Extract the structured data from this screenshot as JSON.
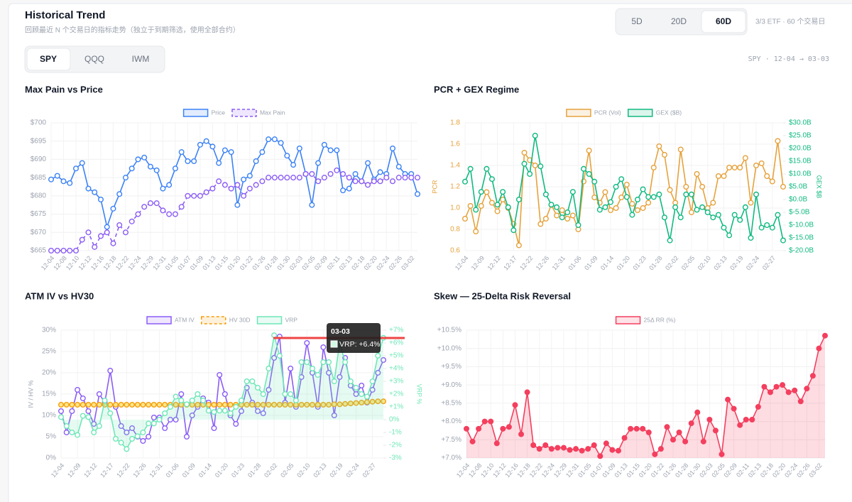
{
  "header": {
    "title": "Historical Trend",
    "subtitle": "回顾最近 N 个交易日的指标走势（独立于到期筛选，使用全部合约）",
    "ranges": [
      "5D",
      "20D",
      "60D"
    ],
    "selected_range": 2,
    "range_note": "3/3 ETF · 60 个交易日",
    "tickers": [
      "SPY",
      "QQQ",
      "IWM"
    ],
    "selected_ticker": 0,
    "period": "SPY · 12-04 → 03-03"
  },
  "chart_data": [
    {
      "type": "line",
      "title": "Max Pain vs Price",
      "grid": true,
      "legend": "top",
      "categories": [
        "12-04",
        null,
        "12-08",
        null,
        "12-10",
        null,
        "12-12",
        null,
        "12-16",
        null,
        "12-18",
        null,
        "12-22",
        null,
        "12-24",
        null,
        "12-29",
        null,
        "12-31",
        null,
        "01-05",
        null,
        "01-07",
        null,
        "01-09",
        null,
        "01-13",
        null,
        "01-15",
        null,
        "01-20",
        null,
        "01-22",
        null,
        "01-26",
        null,
        "01-28",
        null,
        "01-30",
        null,
        "02-03",
        null,
        "02-05",
        null,
        "02-09",
        null,
        "02-11",
        null,
        "02-13",
        null,
        "02-18",
        null,
        "02-20",
        null,
        "02-24",
        null,
        "02-26",
        null,
        "03-02",
        null
      ],
      "ylim": [
        665,
        700
      ],
      "yticks": [
        {
          "value": 665,
          "label": "$665"
        },
        {
          "value": 670,
          "label": "$670"
        },
        {
          "value": 675,
          "label": "$675"
        },
        {
          "value": 680,
          "label": "$680"
        },
        {
          "value": 685,
          "label": "$685"
        },
        {
          "value": 690,
          "label": "$690"
        },
        {
          "value": 695,
          "label": "$695"
        },
        {
          "value": 700,
          "label": "$700"
        }
      ],
      "series": [
        {
          "name": "Price",
          "color": "#3b82f6",
          "values": [
            684.5,
            685.5,
            684,
            683.5,
            687.5,
            689,
            682,
            681,
            679,
            671.5,
            676.5,
            680.5,
            685,
            687.5,
            690,
            690.5,
            688,
            687,
            682,
            683,
            687.5,
            692,
            689.5,
            689.5,
            694,
            695,
            693.5,
            689,
            692.5,
            692,
            677.5,
            684.5,
            685.5,
            689.5,
            692,
            695.5,
            695.5,
            694.5,
            691,
            688.5,
            693,
            686,
            677.5,
            689,
            694,
            692.5,
            692.5,
            681.5,
            682,
            686,
            684,
            689,
            684.5,
            686.5,
            686,
            693,
            688,
            686,
            686,
            680.5
          ]
        },
        {
          "name": "Max Pain",
          "color": "#8b5cf6",
          "line_style": "dashed",
          "values": [
            665,
            665,
            665,
            665,
            665,
            668,
            670,
            666,
            669,
            670,
            667,
            672,
            670,
            673,
            675,
            677,
            678,
            678,
            676,
            675,
            675,
            677,
            680,
            680,
            680,
            681,
            682,
            684,
            683,
            682,
            683,
            680,
            682,
            683,
            684,
            685,
            685,
            685,
            685,
            685,
            685,
            686,
            686,
            684,
            685,
            686,
            687,
            686,
            685,
            684,
            684,
            683,
            684,
            684,
            685,
            684,
            685,
            685,
            685,
            685
          ]
        }
      ]
    },
    {
      "type": "line",
      "title": "PCR + GEX Regime",
      "grid": true,
      "legend": "top",
      "categories": [
        "12-04",
        null,
        null,
        "12-09",
        null,
        null,
        "12-12",
        null,
        null,
        "12-17",
        null,
        null,
        "12-22",
        null,
        null,
        "12-26",
        null,
        null,
        "12-31",
        null,
        null,
        "01-06",
        null,
        null,
        "01-09",
        null,
        null,
        "01-14",
        null,
        null,
        "01-20",
        null,
        null,
        "01-23",
        null,
        null,
        "01-28",
        null,
        null,
        "02-02",
        null,
        null,
        "02-05",
        null,
        null,
        "02-10",
        null,
        null,
        "02-13",
        null,
        null,
        "02-19",
        null,
        null,
        "02-24",
        null,
        null,
        "02-27",
        null,
        null
      ],
      "ylabel": "PCR",
      "ytick_color": "#e6a23c",
      "ylim": [
        0.6,
        1.8
      ],
      "yticks": [
        0.6,
        0.8,
        {
          "value": 1,
          "label": "1.0"
        },
        1.2,
        1.4,
        1.6,
        1.8
      ],
      "y2label": "GEX $B",
      "y2lim": [
        -20,
        30
      ],
      "y2ticks": [
        {
          "value": -20,
          "label": "$-20.0B"
        },
        {
          "value": -15,
          "label": "$-15.0B"
        },
        {
          "value": -10,
          "label": "$-10.0B"
        },
        {
          "value": -5,
          "label": "$-5.0B"
        },
        {
          "value": 0,
          "label": "$0.0B"
        },
        {
          "value": 5,
          "label": "$5.0B"
        },
        {
          "value": 10,
          "label": "$10.0B"
        },
        {
          "value": 15,
          "label": "$15.0B"
        },
        {
          "value": 20,
          "label": "$20.0B"
        },
        {
          "value": 25,
          "label": "$25.0B"
        },
        {
          "value": 30,
          "label": "$30.0B"
        }
      ],
      "series": [
        {
          "name": "PCR (Vol)",
          "color": "#e6a23c",
          "values": [
            0.9,
            1.02,
            0.78,
            1.02,
            1.15,
            1.05,
            0.97,
            1.08,
            1.0,
            0.85,
            0.65,
            1.52,
            1.45,
            1.4,
            0.85,
            0.9,
            1.03,
            0.93,
            0.98,
            0.9,
            0.93,
            0.8,
            1.25,
            1.54,
            1.1,
            1.05,
            1.15,
            0.98,
            1.0,
            1.1,
            1.22,
            1.04,
            0.98,
            1.0,
            1.05,
            1.38,
            1.58,
            1.5,
            1.17,
            1.05,
            1.55,
            1.2,
            0.96,
            1.32,
            1.2,
            1.0,
            1.05,
            1.3,
            1.3,
            1.38,
            1.38,
            1.38,
            1.47,
            1.05,
            1.4,
            1.42,
            1.3,
            1.25,
            1.63,
            1.2
          ]
        },
        {
          "name": "GEX ($B)",
          "color": "#10b981",
          "axis": "y2",
          "values": [
            7,
            12,
            -4,
            3,
            12,
            8,
            -2,
            3,
            -3,
            -12,
            0,
            14,
            10,
            25,
            13,
            2,
            -2,
            -3,
            -7,
            -5,
            3,
            -10,
            12,
            10,
            7,
            -4,
            -3,
            -1,
            5,
            8,
            1,
            -6,
            0,
            4,
            1,
            1,
            2,
            -7,
            -16,
            -3,
            -7,
            2,
            2,
            -4,
            -3,
            -5,
            -7,
            -6,
            -11,
            -14,
            -6,
            -8,
            -3,
            -15,
            2,
            -11,
            -10,
            -11,
            -6,
            -16
          ]
        }
      ]
    },
    {
      "type": "line",
      "title": "ATM IV vs HV30",
      "grid": true,
      "legend": "top",
      "categories": [
        "12-04",
        null,
        null,
        "12-09",
        null,
        null,
        "12-12",
        null,
        null,
        "12-17",
        null,
        null,
        "12-22",
        null,
        null,
        "12-26",
        null,
        null,
        "12-31",
        null,
        null,
        "01-06",
        null,
        null,
        "01-09",
        null,
        null,
        "01-14",
        null,
        null,
        "01-20",
        null,
        null,
        "01-23",
        null,
        null,
        "01-28",
        null,
        null,
        "02-02",
        null,
        null,
        "02-05",
        null,
        null,
        "02-10",
        null,
        null,
        "02-13",
        null,
        null,
        "02-19",
        null,
        null,
        "02-24",
        null,
        null,
        "02-27",
        null,
        null
      ],
      "ylabel": "IV / HV %",
      "ylim": [
        0,
        30
      ],
      "yticks": [
        {
          "value": 0,
          "label": "0%"
        },
        {
          "value": 5,
          "label": "5%"
        },
        {
          "value": 10,
          "label": "10%"
        },
        {
          "value": 15,
          "label": "15%"
        },
        {
          "value": 20,
          "label": "20%"
        },
        {
          "value": 25,
          "label": "25%"
        },
        {
          "value": 30,
          "label": "30%"
        }
      ],
      "y2label": "VRP %",
      "y2lim": [
        -3,
        7
      ],
      "y2ticks": [
        {
          "value": -3,
          "label": "-3%"
        },
        {
          "value": -2,
          "label": "-2%"
        },
        {
          "value": -1,
          "label": "-1%"
        },
        {
          "value": 0,
          "label": "0%"
        },
        {
          "value": 1,
          "label": "+1%"
        },
        {
          "value": 2,
          "label": "+2%"
        },
        {
          "value": 3,
          "label": "+3%"
        },
        {
          "value": 4,
          "label": "+4%"
        },
        {
          "value": 5,
          "label": "+5%"
        },
        {
          "value": 6,
          "label": "+6%"
        },
        {
          "value": 7,
          "label": "+7%"
        }
      ],
      "tooltip": {
        "title": "03-03",
        "text": "VRP: +6.4%"
      },
      "series": [
        {
          "name": "ATM IV",
          "color": "#8b5cf6",
          "values": [
            11,
            6,
            11,
            16,
            14,
            11,
            8,
            15,
            13,
            20.5,
            12,
            7.5,
            6,
            7,
            5,
            4,
            5,
            9.5,
            9.5,
            7,
            9,
            9,
            15,
            5,
            10,
            12,
            14,
            13,
            7,
            19.5,
            15,
            10,
            8,
            11,
            16.5,
            13,
            11,
            10.5,
            16,
            23.5,
            28.5,
            13,
            21,
            12,
            19,
            27,
            20,
            12,
            26,
            20,
            10,
            19,
            23.5,
            17,
            15,
            17,
            13,
            16,
            20,
            23
          ]
        },
        {
          "name": "HV 30D",
          "color": "#f59e0b",
          "line_style": "dashed",
          "values": [
            12.5,
            12.5,
            12.5,
            12.5,
            12.5,
            12.5,
            12.5,
            12.5,
            12.5,
            12.5,
            12.5,
            12.5,
            12.5,
            12.5,
            12.5,
            12.5,
            12.5,
            12.5,
            12.5,
            12.5,
            12.5,
            12.5,
            12.5,
            12.5,
            12.5,
            12.5,
            12.5,
            12.5,
            12.5,
            12.5,
            12.5,
            12.5,
            12.5,
            12.5,
            12.5,
            12.5,
            12.5,
            12.5,
            12.5,
            12.5,
            12.5,
            12.5,
            12.5,
            12.5,
            12.5,
            12.5,
            12.5,
            12.5,
            12.5,
            12.5,
            12.6,
            12.6,
            12.7,
            12.8,
            12.9,
            13,
            13.1,
            13.2,
            13.3,
            13.3
          ]
        },
        {
          "name": "VRP",
          "color": "#6ee7b7",
          "axis": "y2",
          "fill": true,
          "values": [
            0.2,
            -0.5,
            -1,
            -1.2,
            0.3,
            0.2,
            -1,
            -0.5,
            1.5,
            0.5,
            -1.5,
            -1.8,
            -2.3,
            -1.5,
            -1.3,
            -1,
            -0.3,
            -0.3,
            0,
            0.5,
            1,
            1.8,
            1.5,
            1.2,
            1.5,
            2,
            1.5,
            0.7,
            0.6,
            0.7,
            0.7,
            0.5,
            1,
            1.5,
            3,
            3,
            2.5,
            2,
            4,
            6.6,
            5,
            2,
            2,
            1.5,
            4.5,
            4.5,
            4,
            3.5,
            4.5,
            4.5,
            3,
            6,
            4.5,
            3,
            2.5,
            2,
            1.8,
            3,
            5,
            6.4
          ]
        }
      ]
    },
    {
      "type": "line",
      "title": "Skew — 25-Delta Risk Reversal",
      "grid": true,
      "legend": "top",
      "categories": [
        "12-04",
        null,
        "12-08",
        null,
        "12-10",
        null,
        "12-12",
        null,
        "12-16",
        null,
        "12-18",
        null,
        "12-22",
        null,
        "12-24",
        null,
        "12-29",
        null,
        "12-31",
        null,
        "01-05",
        null,
        "01-07",
        null,
        "01-09",
        null,
        "01-13",
        null,
        "01-15",
        null,
        "01-20",
        null,
        "01-22",
        null,
        "01-26",
        null,
        "01-28",
        null,
        "01-30",
        null,
        "02-03",
        null,
        "02-05",
        null,
        "02-09",
        null,
        "02-11",
        null,
        "02-13",
        null,
        "02-18",
        null,
        "02-20",
        null,
        "02-24",
        null,
        "02-26",
        null,
        "03-02",
        null
      ],
      "ylim": [
        7,
        10.5
      ],
      "yticks": [
        {
          "value": 7,
          "label": "+7.0%"
        },
        {
          "value": 7.5,
          "label": "+7.5%"
        },
        {
          "value": 8,
          "label": "+8.0%"
        },
        {
          "value": 8.5,
          "label": "+8.5%"
        },
        {
          "value": 9,
          "label": "+9.0%"
        },
        {
          "value": 9.5,
          "label": "+9.5%"
        },
        {
          "value": 10,
          "label": "+10.0%"
        },
        {
          "value": 10.5,
          "label": "+10.5%"
        }
      ],
      "series": [
        {
          "name": "25Δ RR (%)",
          "color": "#f43f5e",
          "fill": true,
          "solid_points": true,
          "values": [
            7.8,
            7.45,
            7.8,
            8.0,
            8.0,
            7.4,
            7.8,
            7.85,
            8.45,
            7.65,
            8.8,
            7.35,
            7.25,
            7.35,
            7.25,
            7.28,
            7.28,
            7.22,
            7.25,
            7.2,
            7.25,
            7.35,
            7.05,
            7.4,
            7.22,
            7.2,
            7.55,
            7.8,
            7.8,
            7.8,
            7.7,
            7.1,
            7.25,
            7.85,
            7.5,
            7.7,
            7.45,
            7.95,
            8.25,
            7.45,
            8.05,
            7.75,
            7.1,
            8.6,
            8.35,
            7.9,
            8.05,
            8.05,
            8.4,
            8.95,
            8.8,
            8.95,
            9.0,
            8.8,
            8.85,
            8.55,
            8.9,
            9.25,
            10.0,
            10.35
          ]
        }
      ]
    }
  ]
}
